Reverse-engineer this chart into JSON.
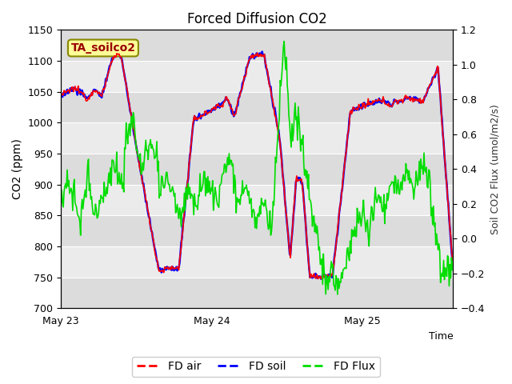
{
  "title": "Forced Diffusion CO2",
  "xlabel": "Time",
  "ylabel_left": "CO2 (ppm)",
  "ylabel_right": "Soil CO2 Flux (umol/m2/s)",
  "annotation": "TA_soilco2",
  "ylim_left": [
    700,
    1150
  ],
  "ylim_right": [
    -0.4,
    1.2
  ],
  "yticks_left": [
    700,
    750,
    800,
    850,
    900,
    950,
    1000,
    1050,
    1100,
    1150
  ],
  "yticks_right": [
    -0.4,
    -0.2,
    0.0,
    0.2,
    0.4,
    0.6,
    0.8,
    1.0,
    1.2
  ],
  "xtick_positions": [
    0,
    1,
    2
  ],
  "xtick_labels": [
    "May 23",
    "May 24",
    "May 25"
  ],
  "xlim": [
    0,
    2.6
  ],
  "colors": {
    "fd_air": "#FF0000",
    "fd_soil": "#0000FF",
    "fd_flux": "#00DD00",
    "band_odd": "#EBEBEB",
    "band_even": "#D8D8D8",
    "annotation_bg": "#FFFF99",
    "annotation_border": "#AA6600"
  },
  "legend_labels": [
    "FD air",
    "FD soil",
    "FD Flux"
  ],
  "n_points": 500
}
